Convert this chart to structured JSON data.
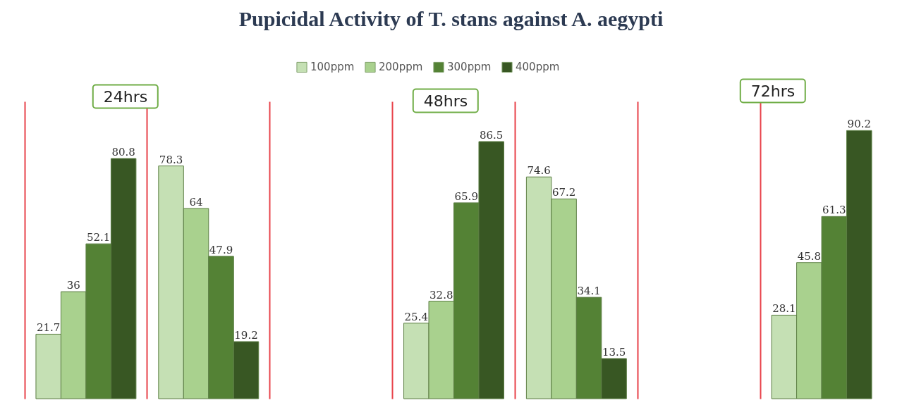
{
  "chart_data": {
    "type": "bar",
    "title": "Pupicidal Activity of T. stans against A. aegypti",
    "categories": [
      null,
      null,
      null,
      null,
      null
    ],
    "series": [
      {
        "name": "100ppm",
        "color": "#c5e0b4",
        "values": [
          21.7,
          78.3,
          25.4,
          74.6,
          28.1
        ]
      },
      {
        "name": "200ppm",
        "color": "#a9d18e",
        "values": [
          36,
          64,
          32.8,
          67.2,
          45.8
        ]
      },
      {
        "name": "300ppm",
        "color": "#548235",
        "values": [
          52.1,
          47.9,
          65.9,
          34.1,
          61.3
        ]
      },
      {
        "name": "400ppm",
        "color": "#385723",
        "values": [
          80.8,
          19.2,
          86.5,
          13.5,
          90.2
        ]
      }
    ],
    "annotations": [
      "24hrs",
      "48hrs",
      "72hrs"
    ],
    "data_labels": true,
    "legend": "top",
    "grid": "x"
  }
}
